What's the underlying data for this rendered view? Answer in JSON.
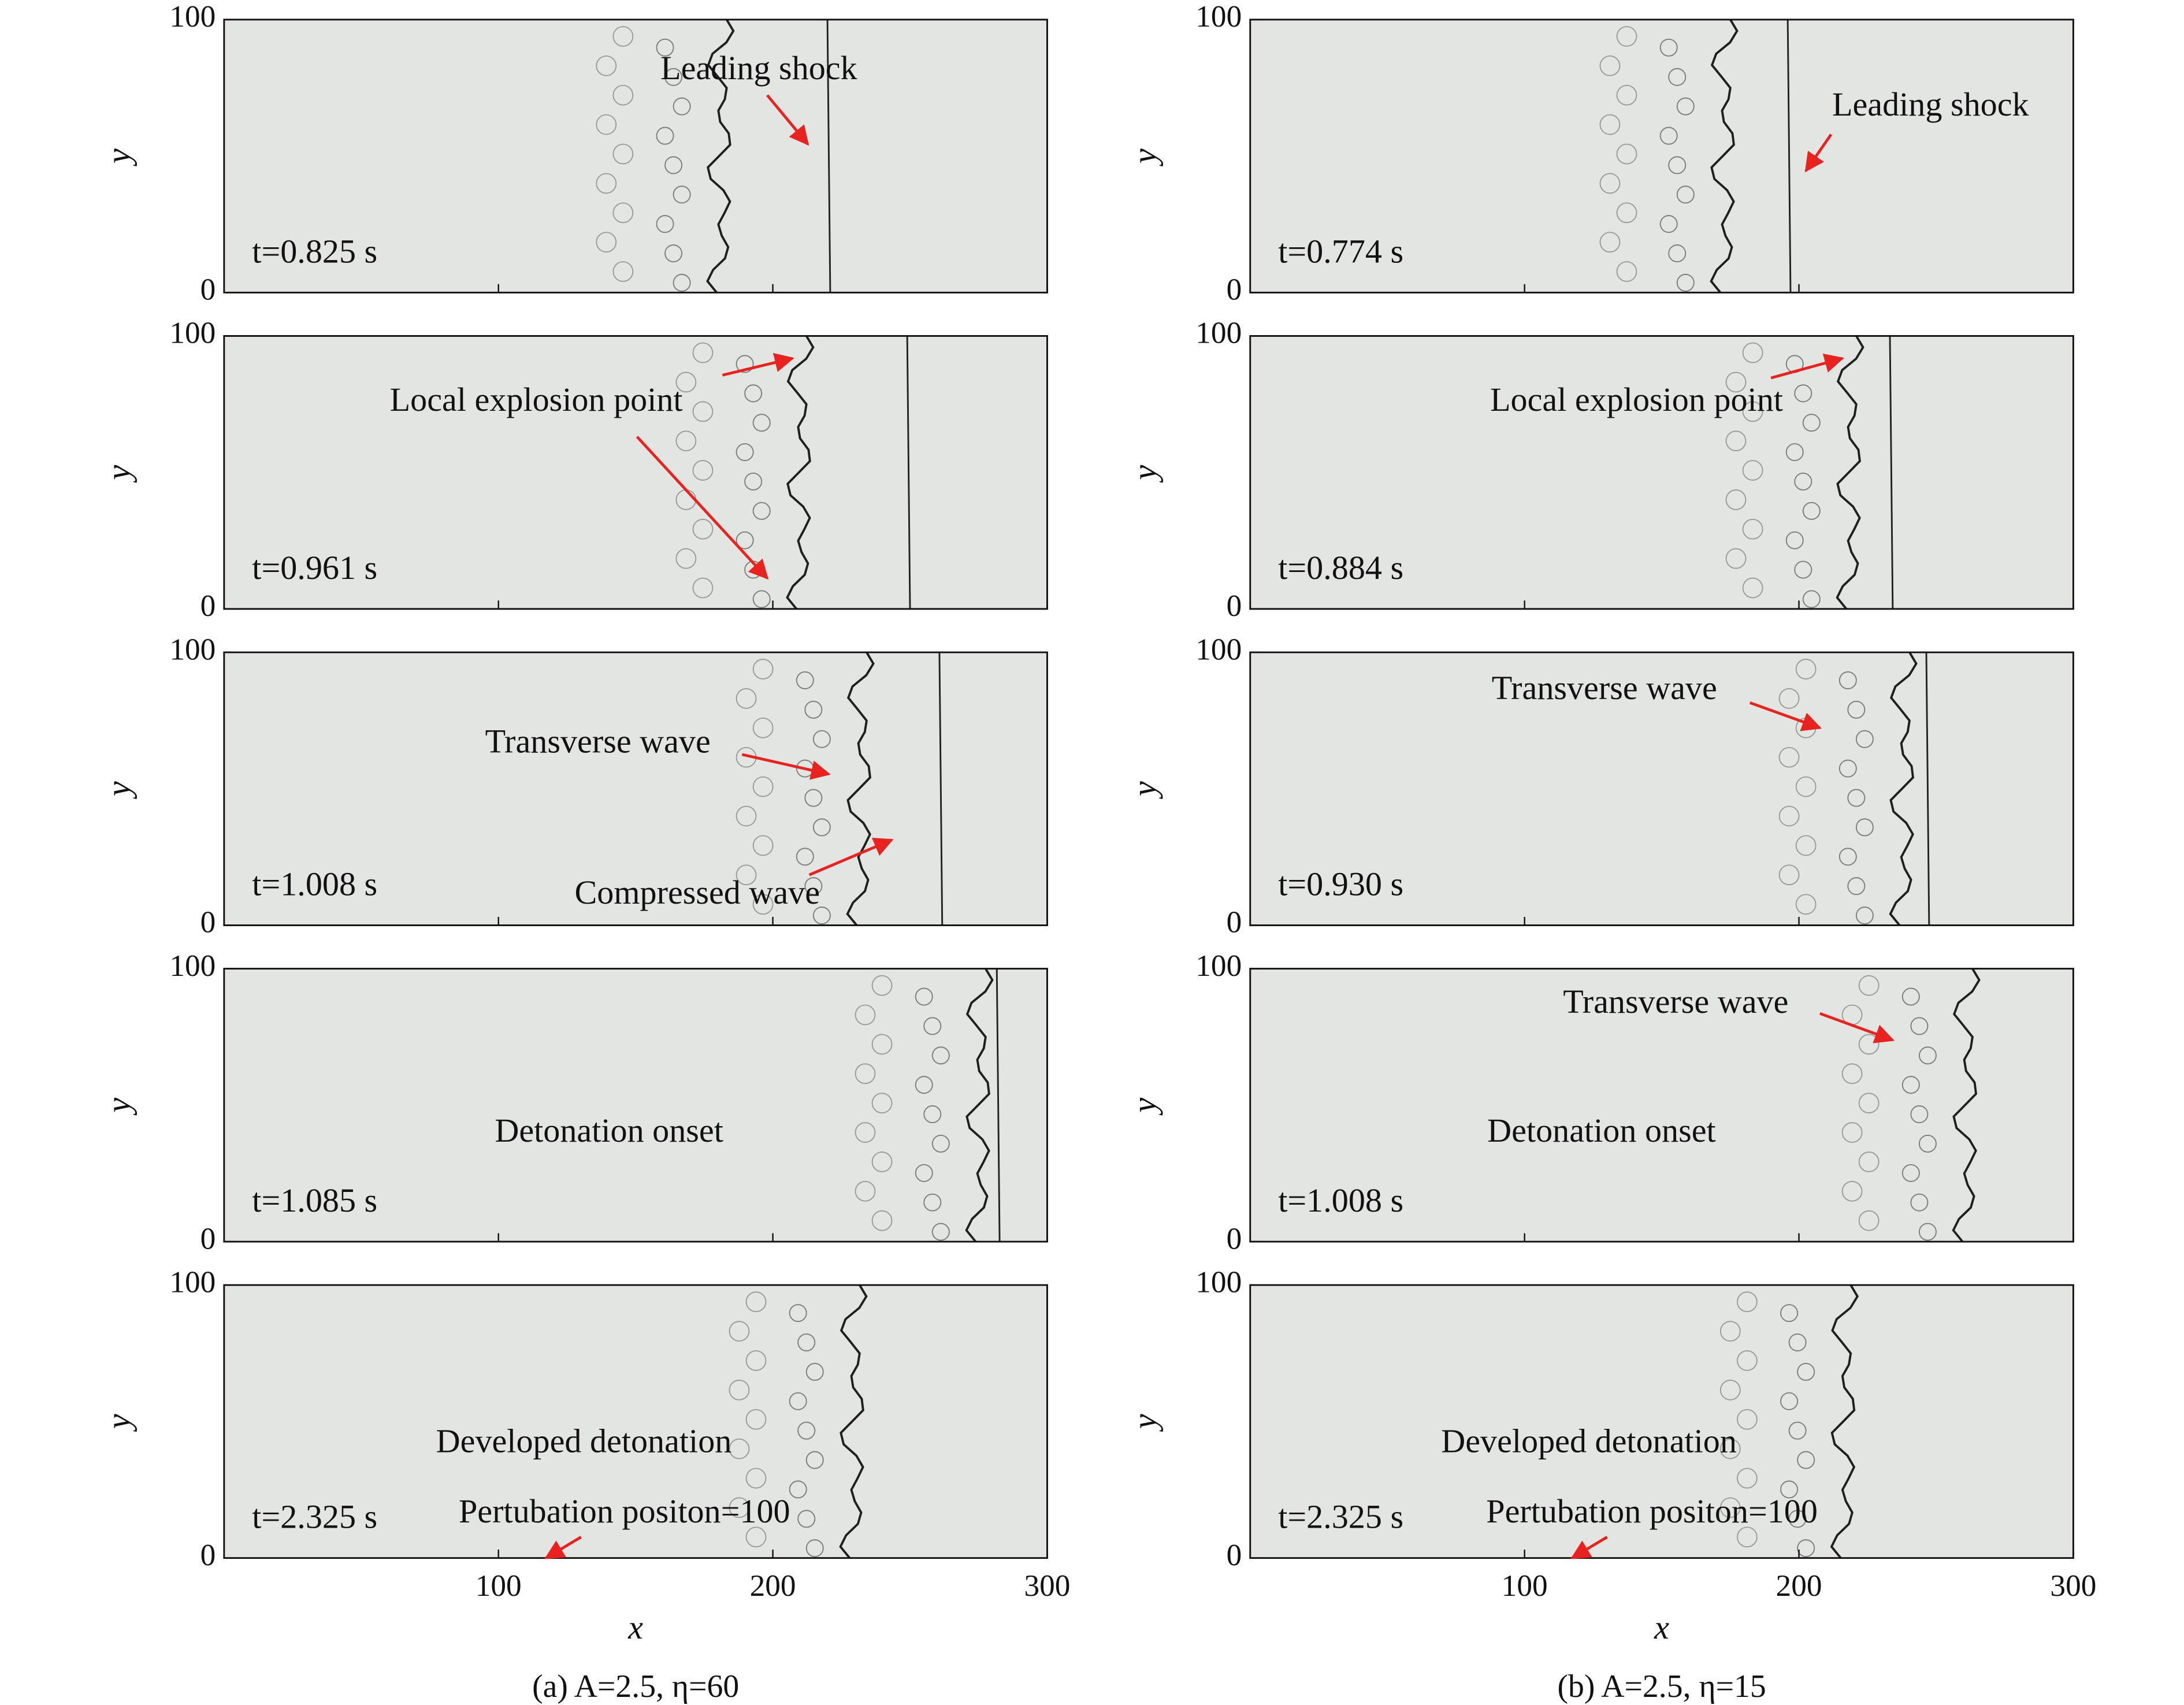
{
  "chart_data": [
    {
      "type": "field",
      "ylabel": "y",
      "ylim": [
        0,
        100
      ],
      "yticks": [
        0,
        100
      ],
      "xlim": [
        0,
        300
      ],
      "xticks": [
        100,
        200,
        300
      ],
      "time": "t=0.825 s",
      "annotations": [
        "Leading shock"
      ]
    },
    {
      "type": "field",
      "ylabel": "y",
      "ylim": [
        0,
        100
      ],
      "yticks": [
        0,
        100
      ],
      "xlim": [
        0,
        300
      ],
      "xticks": [
        100,
        200,
        300
      ],
      "time": "t=0.961 s",
      "annotations": [
        "Local explosion point"
      ]
    },
    {
      "type": "field",
      "ylabel": "y",
      "ylim": [
        0,
        100
      ],
      "yticks": [
        0,
        100
      ],
      "xlim": [
        0,
        300
      ],
      "xticks": [
        100,
        200,
        300
      ],
      "time": "t=1.008 s",
      "annotations": [
        "Transverse wave",
        "Compressed wave"
      ]
    },
    {
      "type": "field",
      "ylabel": "y",
      "ylim": [
        0,
        100
      ],
      "yticks": [
        0,
        100
      ],
      "xlim": [
        0,
        300
      ],
      "xticks": [
        100,
        200,
        300
      ],
      "time": "t=1.085 s",
      "annotations": [
        "Detonation onset"
      ]
    },
    {
      "type": "field",
      "ylabel": "y",
      "xlabel": "x",
      "ylim": [
        0,
        100
      ],
      "yticks": [
        0,
        100
      ],
      "xlim": [
        0,
        300
      ],
      "xticks": [
        100,
        200,
        300
      ],
      "time": "t=2.325 s",
      "annotations": [
        "Developed detonation",
        "Pertubation positon=100"
      ]
    },
    {
      "type": "field",
      "ylabel": "y",
      "ylim": [
        0,
        100
      ],
      "yticks": [
        0,
        100
      ],
      "xlim": [
        0,
        300
      ],
      "xticks": [
        100,
        200,
        300
      ],
      "time": "t=0.774 s",
      "annotations": [
        "Leading shock"
      ]
    },
    {
      "type": "field",
      "ylabel": "y",
      "ylim": [
        0,
        100
      ],
      "yticks": [
        0,
        100
      ],
      "xlim": [
        0,
        300
      ],
      "xticks": [
        100,
        200,
        300
      ],
      "time": "t=0.884 s",
      "annotations": [
        "Local explosion point"
      ]
    },
    {
      "type": "field",
      "ylabel": "y",
      "ylim": [
        0,
        100
      ],
      "yticks": [
        0,
        100
      ],
      "xlim": [
        0,
        300
      ],
      "xticks": [
        100,
        200,
        300
      ],
      "time": "t=0.930 s",
      "annotations": [
        "Transverse wave"
      ]
    },
    {
      "type": "field",
      "ylabel": "y",
      "ylim": [
        0,
        100
      ],
      "yticks": [
        0,
        100
      ],
      "xlim": [
        0,
        300
      ],
      "xticks": [
        100,
        200,
        300
      ],
      "time": "t=1.008 s",
      "annotations": [
        "Transverse wave",
        "Detonation onset"
      ]
    },
    {
      "type": "field",
      "ylabel": "y",
      "xlabel": "x",
      "ylim": [
        0,
        100
      ],
      "yticks": [
        0,
        100
      ],
      "xlim": [
        0,
        300
      ],
      "xticks": [
        100,
        200,
        300
      ],
      "time": "t=2.325 s",
      "annotations": [
        "Developed detonation",
        "Pertubation positon=100"
      ]
    }
  ],
  "figure": {
    "captions": [
      "(a) A=2.5, η=60",
      "(b) A=2.5, η=15"
    ]
  }
}
